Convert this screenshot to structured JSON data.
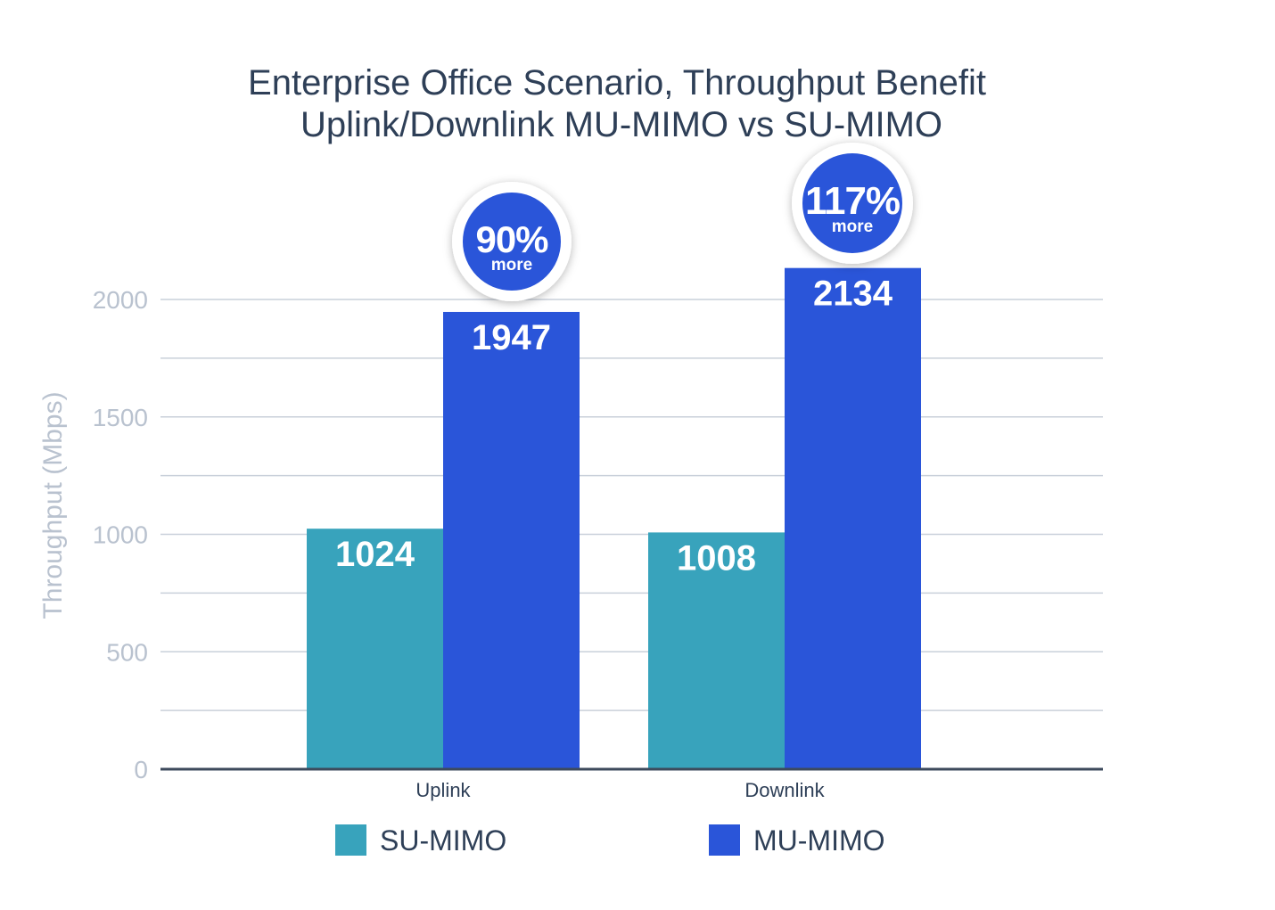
{
  "colors": {
    "su_mimo": "#38a3bc",
    "mu_mimo": "#2a55d9",
    "title": "#2e3f57",
    "axis_text": "#b9c2cf",
    "grid": "#c9d0da",
    "baseline": "#3d4a5c",
    "category_text": "#2e3f57",
    "badge_bg": "#2a55d9",
    "badge_text": "#ffffff",
    "bar_label": "#ffffff"
  },
  "chart_data": {
    "type": "bar",
    "title": "Enterprise Office Scenario, Throughput Benefit",
    "subtitle": "Uplink/Downlink MU-MIMO vs SU-MIMO",
    "xlabel": "",
    "ylabel": "Throughput (Mbps)",
    "ylim": [
      0,
      2000
    ],
    "yticks": [
      0,
      500,
      1000,
      1500,
      2000
    ],
    "minor_gridlines": [
      250,
      750,
      1250,
      1750
    ],
    "grid": true,
    "legend_position": "bottom",
    "categories": [
      "Uplink",
      "Downlink"
    ],
    "series": [
      {
        "name": "SU-MIMO",
        "values": [
          1024,
          1008
        ],
        "labels": [
          "1024",
          "1008"
        ]
      },
      {
        "name": "MU-MIMO",
        "values": [
          1947,
          2134
        ],
        "labels": [
          "1947",
          "2134"
        ]
      }
    ],
    "annotations": [
      {
        "category": "Uplink",
        "value": "90%",
        "text": "more"
      },
      {
        "category": "Downlink",
        "value": "117%",
        "text": "more"
      }
    ]
  }
}
